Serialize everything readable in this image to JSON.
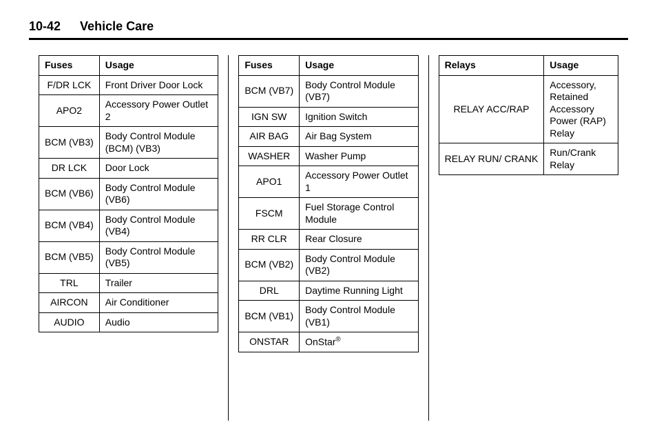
{
  "header": {
    "page_number": "10-42",
    "title": "Vehicle Care"
  },
  "tables": {
    "fuses_a": {
      "col1_header": "Fuses",
      "col2_header": "Usage",
      "rows": [
        {
          "fuse": "F/DR LCK",
          "usage": "Front Driver Door Lock"
        },
        {
          "fuse": "APO2",
          "usage": "Accessory Power Outlet 2"
        },
        {
          "fuse": "BCM (VB3)",
          "usage": "Body Control Module (BCM) (VB3)"
        },
        {
          "fuse": "DR LCK",
          "usage": "Door Lock"
        },
        {
          "fuse": "BCM (VB6)",
          "usage": "Body Control Module (VB6)"
        },
        {
          "fuse": "BCM (VB4)",
          "usage": "Body Control Module (VB4)"
        },
        {
          "fuse": "BCM (VB5)",
          "usage": "Body Control Module (VB5)"
        },
        {
          "fuse": "TRL",
          "usage": "Trailer"
        },
        {
          "fuse": "AIRCON",
          "usage": "Air Conditioner"
        },
        {
          "fuse": "AUDIO",
          "usage": "Audio"
        }
      ]
    },
    "fuses_b": {
      "col1_header": "Fuses",
      "col2_header": "Usage",
      "rows": [
        {
          "fuse": "BCM (VB7)",
          "usage": "Body Control Module (VB7)"
        },
        {
          "fuse": "IGN SW",
          "usage": "Ignition Switch"
        },
        {
          "fuse": "AIR BAG",
          "usage": "Air Bag System"
        },
        {
          "fuse": "WASHER",
          "usage": "Washer Pump"
        },
        {
          "fuse": "APO1",
          "usage": "Accessory Power Outlet 1"
        },
        {
          "fuse": "FSCM",
          "usage": "Fuel Storage Control Module"
        },
        {
          "fuse": "RR CLR",
          "usage": "Rear Closure"
        },
        {
          "fuse": "BCM (VB2)",
          "usage": "Body Control Module (VB2)"
        },
        {
          "fuse": "DRL",
          "usage": "Daytime Running Light"
        },
        {
          "fuse": "BCM (VB1)",
          "usage": "Body Control Module (VB1)"
        },
        {
          "fuse": "ONSTAR",
          "usage": "OnStar®"
        }
      ]
    },
    "relays": {
      "col1_header": "Relays",
      "col2_header": "Usage",
      "rows": [
        {
          "fuse": "RELAY ACC/RAP",
          "usage": "Accessory, Retained Accessory Power (RAP) Relay"
        },
        {
          "fuse": "RELAY RUN/ CRANK",
          "usage": "Run/Crank Relay"
        }
      ]
    }
  }
}
